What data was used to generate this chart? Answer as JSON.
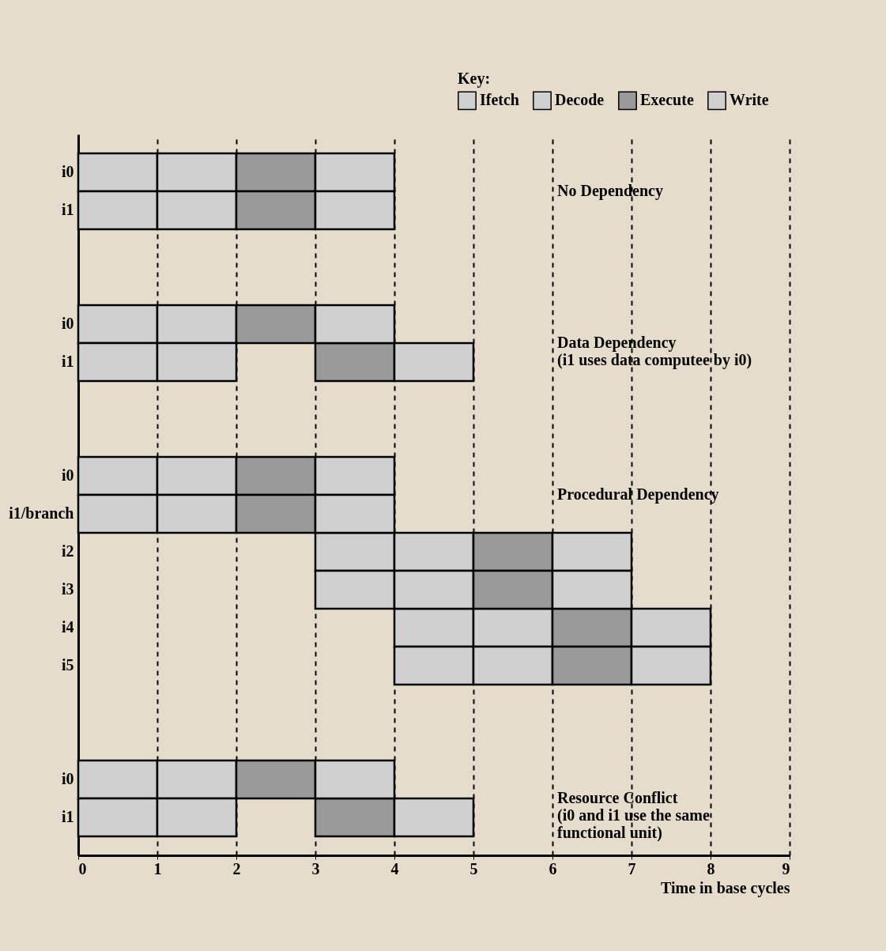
{
  "chart_data": {
    "type": "bar",
    "orientation": "horizontal",
    "xlabel": "Time in base cycles",
    "legend_title": "Key:",
    "legend": "top right",
    "grid": "x",
    "categories": [
      "i0",
      "i1",
      null,
      null,
      "i0",
      "i1",
      null,
      null,
      "i0",
      "i1/branch",
      "i2",
      "i3",
      "i4",
      "i5",
      null,
      null,
      "i0",
      "i1"
    ],
    "series": [
      {
        "name": "Ifetch",
        "color": "#d0d0d0",
        "base": [
          0,
          0,
          null,
          null,
          0,
          0,
          null,
          null,
          0,
          0,
          3,
          3,
          4,
          4,
          null,
          null,
          0,
          0
        ],
        "values": [
          1,
          1,
          null,
          null,
          1,
          1,
          null,
          null,
          1,
          1,
          1,
          1,
          1,
          1,
          null,
          null,
          1,
          1
        ]
      },
      {
        "name": "Decode",
        "color": "#d0d0d0",
        "base": [
          1,
          1,
          null,
          null,
          1,
          1,
          null,
          null,
          1,
          1,
          4,
          4,
          5,
          5,
          null,
          null,
          1,
          1
        ],
        "values": [
          1,
          1,
          null,
          null,
          1,
          1,
          null,
          null,
          1,
          1,
          1,
          1,
          1,
          1,
          null,
          null,
          1,
          1
        ]
      },
      {
        "name": "Execute",
        "color": "#9a9a9a",
        "base": [
          2,
          2,
          null,
          null,
          2,
          3,
          null,
          null,
          2,
          2,
          5,
          5,
          6,
          6,
          null,
          null,
          2,
          3
        ],
        "values": [
          1,
          1,
          null,
          null,
          1,
          1,
          null,
          null,
          1,
          1,
          1,
          1,
          1,
          1,
          null,
          null,
          1,
          1
        ]
      },
      {
        "name": "Write",
        "color": "#d0d0d0",
        "base": [
          3,
          3,
          null,
          null,
          3,
          4,
          null,
          null,
          3,
          3,
          6,
          6,
          7,
          7,
          null,
          null,
          3,
          4
        ],
        "values": [
          1,
          1,
          null,
          null,
          1,
          1,
          null,
          null,
          1,
          1,
          1,
          1,
          1,
          1,
          null,
          null,
          1,
          1
        ]
      }
    ],
    "xlim": [
      0,
      9
    ],
    "xticks": [
      0,
      1,
      2,
      3,
      4,
      5,
      6,
      7,
      8,
      9
    ],
    "annotations": [
      "No Dependency",
      "Data Dependency\n(i1 uses data computee by i0)",
      "Procedural Dependency",
      "Resource Conflict\n(i0 and i1 use the same\nfunctional unit)"
    ]
  }
}
